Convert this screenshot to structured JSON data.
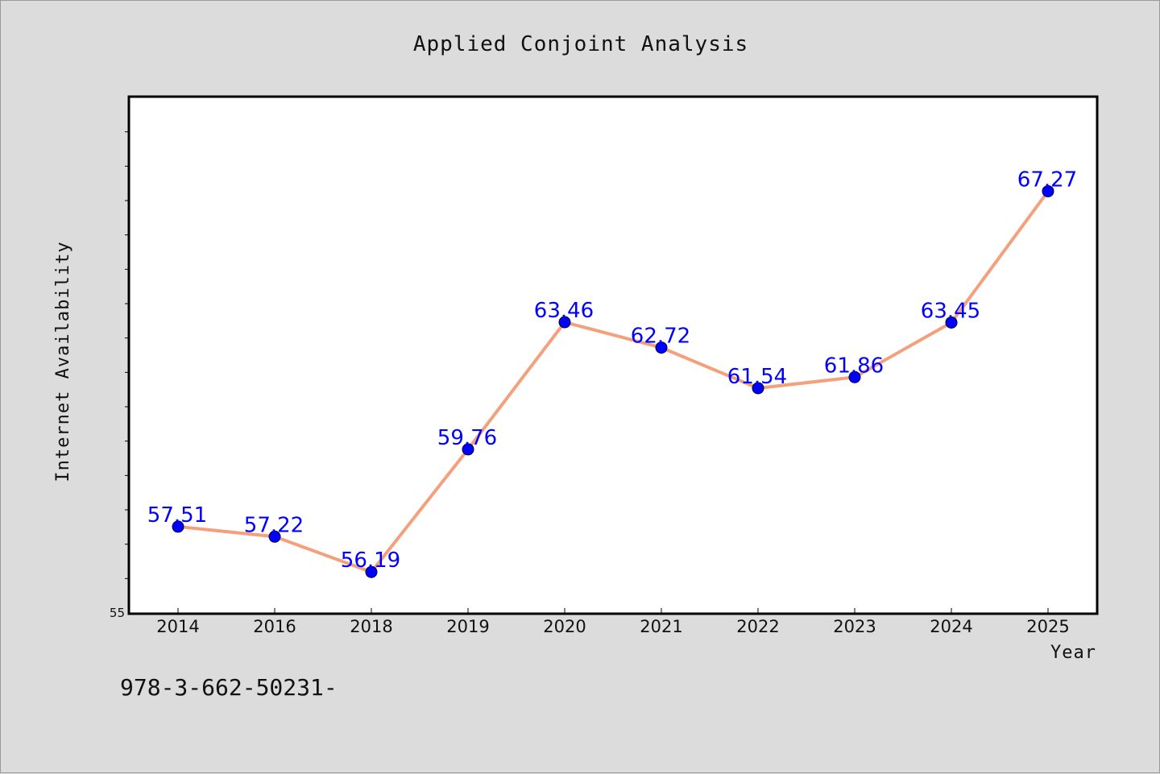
{
  "colors": {
    "background": "#dcdcdc",
    "plot_background": "#ffffff",
    "line": "#f4a07c",
    "marker": "#0000ff",
    "data_label": "#0000ff"
  },
  "footnote": "978-3-662-50231-",
  "chart_data": {
    "type": "line",
    "title": "Applied Conjoint Analysis",
    "xlabel": "Year",
    "ylabel": "Internet Availability",
    "categories": [
      "2014",
      "2016",
      "2018",
      "2019",
      "2020",
      "2021",
      "2022",
      "2023",
      "2024",
      "2025"
    ],
    "series": [
      {
        "values": [
          57.51,
          57.22,
          56.19,
          59.76,
          63.46,
          62.72,
          61.54,
          61.86,
          63.45,
          67.27
        ],
        "labels": [
          "57.51",
          "57.22",
          "56.19",
          "59.76",
          "63.46",
          "62.72",
          "61.54",
          "61.86",
          "63.45",
          "67.27"
        ]
      }
    ],
    "ylim": [
      55,
      70
    ],
    "y_tick_labels": [
      "55"
    ],
    "grid": false,
    "legend": "none"
  }
}
